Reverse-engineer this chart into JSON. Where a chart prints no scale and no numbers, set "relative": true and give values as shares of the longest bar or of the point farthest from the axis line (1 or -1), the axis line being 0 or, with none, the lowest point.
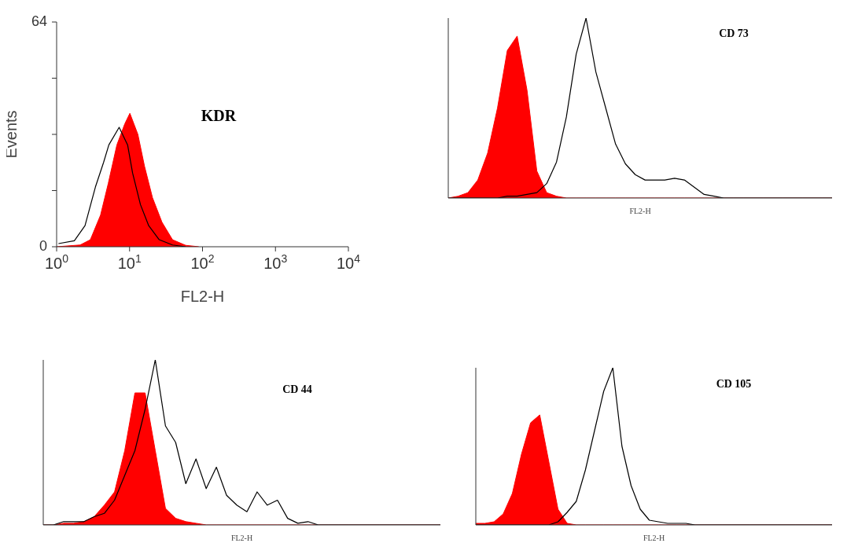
{
  "chart_data": [
    {
      "type": "area",
      "title": "KDR",
      "xlabel": "FL2-H",
      "ylabel": "Events",
      "log": "x",
      "xlim": [
        1,
        10000
      ],
      "xticks": [
        {
          "value": 1,
          "label": "10$^{0}$"
        },
        {
          "value": 10,
          "label": "10$^{1}$"
        },
        {
          "value": 100,
          "label": "10$^{2}$"
        },
        {
          "value": 1000,
          "label": "10$^{3}$"
        },
        {
          "value": 10000,
          "label": "10$^{4}$"
        }
      ],
      "ylim": [
        0,
        64
      ],
      "yticks": [
        0,
        {
          "value": 16,
          "label": null
        },
        {
          "value": 32,
          "label": null
        },
        {
          "value": 48,
          "label": null
        },
        64
      ],
      "series": [
        {
          "color": "#ff0000",
          "x": [
            1,
            2.1,
            2.9,
            4,
            5.1,
            6.7,
            8.6,
            10.1,
            13,
            16,
            20.6,
            27.8,
            38.8,
            58.8,
            89
          ],
          "values": [
            0,
            0.5,
            2,
            9,
            18,
            29,
            35,
            38,
            32,
            23,
            14,
            7,
            2,
            0.4,
            0
          ]
        },
        {
          "type": "line",
          "color": "#000000",
          "x": [
            1.06,
            1.75,
            2.45,
            3.4,
            4.4,
            5.2,
            7.2,
            9.4,
            11,
            14.1,
            18.3,
            25.5,
            38.8,
            58.8
          ],
          "values": [
            0.9,
            1.7,
            6,
            17,
            24,
            29,
            34,
            29,
            21,
            12,
            6,
            2,
            0.5,
            0
          ]
        }
      ]
    },
    {
      "type": "area",
      "title": "CD 73",
      "xlabel": "FL2-H",
      "relative": true,
      "tick_labels": false,
      "categories": [
        null,
        null,
        null,
        null,
        null,
        null,
        null,
        null,
        null,
        null,
        null,
        null,
        null,
        null,
        null,
        null,
        null,
        null,
        null,
        null,
        null,
        null,
        null,
        null,
        null,
        null,
        null,
        null,
        null,
        null,
        null,
        null,
        null,
        null,
        null,
        null,
        null,
        null,
        null,
        null
      ],
      "series": [
        {
          "color": "#ff0000",
          "values": [
            0,
            0.01,
            0.03,
            0.1,
            0.25,
            0.5,
            0.82,
            0.9,
            0.6,
            0.15,
            0.03,
            0.01,
            0,
            0,
            0,
            0,
            0,
            0,
            0,
            0,
            0,
            0,
            0,
            0,
            0,
            0,
            0,
            0,
            0,
            0,
            0,
            0,
            0,
            0,
            0,
            0,
            0,
            0,
            0,
            0
          ]
        },
        {
          "type": "line",
          "color": "#000000",
          "values": [
            0,
            0,
            0,
            0,
            0,
            0,
            0.01,
            0.01,
            0.02,
            0.03,
            0.08,
            0.2,
            0.45,
            0.8,
            1,
            0.7,
            0.5,
            0.3,
            0.19,
            0.13,
            0.1,
            0.1,
            0.1,
            0.11,
            0.1,
            0.06,
            0.02,
            0.01,
            0,
            0,
            0,
            0,
            0,
            0,
            0,
            0,
            0,
            0,
            0,
            0
          ]
        }
      ]
    },
    {
      "type": "area",
      "title": "CD 44",
      "xlabel": "FL2-H",
      "relative": true,
      "tick_labels": false,
      "categories": [
        null,
        null,
        null,
        null,
        null,
        null,
        null,
        null,
        null,
        null,
        null,
        null,
        null,
        null,
        null,
        null,
        null,
        null,
        null,
        null,
        null,
        null,
        null,
        null,
        null,
        null,
        null,
        null,
        null,
        null,
        null,
        null,
        null,
        null,
        null,
        null,
        null,
        null,
        null,
        null
      ],
      "series": [
        {
          "color": "#ff0000",
          "values": [
            0,
            0,
            0.01,
            0.01,
            0.02,
            0.05,
            0.12,
            0.2,
            0.45,
            0.8,
            0.8,
            0.45,
            0.1,
            0.04,
            0.02,
            0.01,
            0,
            0,
            0,
            0,
            0,
            0,
            0,
            0,
            0,
            0,
            0,
            0,
            0,
            0,
            0,
            0,
            0,
            0,
            0,
            0,
            0,
            0,
            0,
            0
          ]
        },
        {
          "type": "line",
          "color": "#000000",
          "values": [
            0,
            0,
            0.02,
            0.02,
            0.02,
            0.05,
            0.07,
            0.15,
            0.3,
            0.45,
            0.7,
            1,
            0.6,
            0.5,
            0.25,
            0.4,
            0.22,
            0.35,
            0.18,
            0.12,
            0.08,
            0.2,
            0.12,
            0.15,
            0.04,
            0.01,
            0.02,
            0,
            0,
            0,
            0,
            0,
            0,
            0,
            0,
            0,
            0,
            0,
            0,
            0
          ]
        }
      ]
    },
    {
      "type": "area",
      "title": "CD 105",
      "xlabel": "FL2-H",
      "relative": true,
      "tick_labels": false,
      "categories": [
        null,
        null,
        null,
        null,
        null,
        null,
        null,
        null,
        null,
        null,
        null,
        null,
        null,
        null,
        null,
        null,
        null,
        null,
        null,
        null,
        null,
        null,
        null,
        null,
        null,
        null,
        null,
        null,
        null,
        null,
        null,
        null,
        null,
        null,
        null,
        null,
        null,
        null,
        null,
        null
      ],
      "series": [
        {
          "color": "#ff0000",
          "values": [
            0.01,
            0.01,
            0.02,
            0.07,
            0.2,
            0.45,
            0.65,
            0.7,
            0.4,
            0.1,
            0.01,
            0,
            0,
            0,
            0,
            0,
            0,
            0,
            0,
            0,
            0,
            0,
            0,
            0,
            0,
            0,
            0,
            0,
            0,
            0,
            0,
            0,
            0,
            0,
            0,
            0,
            0,
            0,
            0,
            0
          ]
        },
        {
          "type": "line",
          "color": "#000000",
          "values": [
            0,
            0,
            0,
            0,
            0,
            0,
            0,
            0,
            0,
            0.02,
            0.08,
            0.15,
            0.35,
            0.6,
            0.85,
            1,
            0.5,
            0.25,
            0.1,
            0.03,
            0.02,
            0.01,
            0.01,
            0.01,
            0,
            0,
            0,
            0,
            0,
            0,
            0,
            0,
            0,
            0,
            0,
            0,
            0,
            0,
            0,
            0
          ]
        }
      ]
    }
  ]
}
